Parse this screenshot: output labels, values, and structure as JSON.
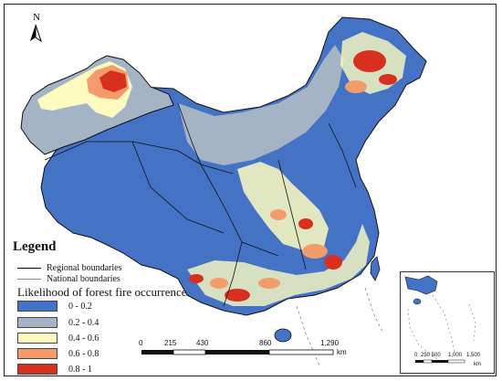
{
  "north_arrow": {
    "label": "N",
    "icon": "north-arrow-icon"
  },
  "legend": {
    "title": "Legend",
    "lines": [
      {
        "label": "Regional boundaries",
        "color": "#000000"
      },
      {
        "label": "National boundaries",
        "color": "#8a8a8a"
      }
    ],
    "subtitle": "Likelihood of forest fire occurrence",
    "classes": [
      {
        "label": "0 - 0.2",
        "color": "#4472c4"
      },
      {
        "label": "0.2 - 0.4",
        "color": "#a5b4c4"
      },
      {
        "label": "0.4 - 0.6",
        "color": "#fdfbc0"
      },
      {
        "label": "0.6 - 0.8",
        "color": "#f39b6b"
      },
      {
        "label": "0.8 - 1",
        "color": "#d7301f"
      }
    ]
  },
  "main_scale": {
    "ticks": [
      "0",
      "215",
      "430",
      "860",
      "1,290"
    ],
    "unit": "km"
  },
  "inset_scale": {
    "ticks": [
      "0",
      "250 500",
      "1,000",
      "1,500"
    ],
    "unit": "km"
  }
}
